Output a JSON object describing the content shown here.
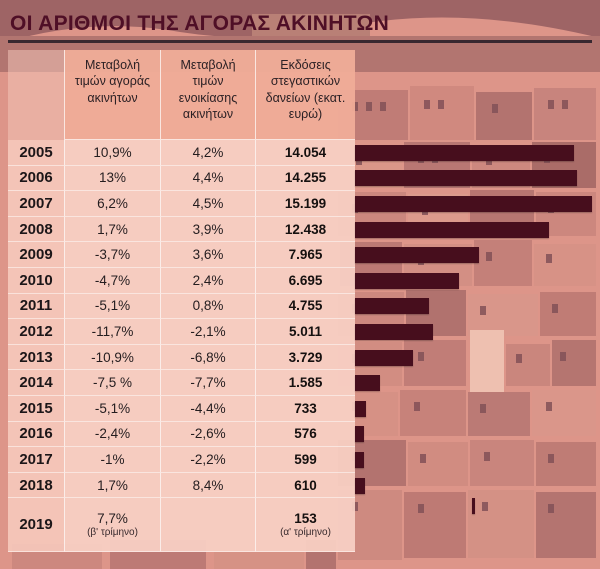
{
  "title": "ΟΙ ΑΡΙΘΜΟΙ ΤΗΣ ΑΓΟΡΑΣ ΑΚΙΝΗΤΩΝ",
  "colors": {
    "bar": "#470e1d",
    "title": "#4f0f26",
    "table_bg": "#f8cfc3",
    "header_bg": "#efac98",
    "photo_tint": "#db9488"
  },
  "table": {
    "headers": [
      "Μεταβολή τιμών αγοράς ακινήτων",
      "Μεταβολή τιμών ενοικίασης ακινήτων",
      "Εκδόσεις στεγαστικών δανείων (εκατ. ευρώ)"
    ],
    "rows": [
      {
        "year": "2005",
        "purchase": "10,9%",
        "rent": "4,2%",
        "loans": "14.054",
        "loans_value": 14054
      },
      {
        "year": "2006",
        "purchase": "13%",
        "rent": "4,4%",
        "loans": "14.255",
        "loans_value": 14255
      },
      {
        "year": "2007",
        "purchase": "6,2%",
        "rent": "4,5%",
        "loans": "15.199",
        "loans_value": 15199
      },
      {
        "year": "2008",
        "purchase": "1,7%",
        "rent": "3,9%",
        "loans": "12.438",
        "loans_value": 12438
      },
      {
        "year": "2009",
        "purchase": "-3,7%",
        "rent": "3,6%",
        "loans": "7.965",
        "loans_value": 7965
      },
      {
        "year": "2010",
        "purchase": "-4,7%",
        "rent": "2,4%",
        "loans": "6.695",
        "loans_value": 6695
      },
      {
        "year": "2011",
        "purchase": "-5,1%",
        "rent": "0,8%",
        "loans": "4.755",
        "loans_value": 4755
      },
      {
        "year": "2012",
        "purchase": "-11,7%",
        "rent": "-2,1%",
        "loans": "5.011",
        "loans_value": 5011
      },
      {
        "year": "2013",
        "purchase": "-10,9%",
        "rent": "-6,8%",
        "loans": "3.729",
        "loans_value": 3729
      },
      {
        "year": "2014",
        "purchase": "-7,5 %",
        "rent": "-7,7%",
        "loans": "1.585",
        "loans_value": 1585
      },
      {
        "year": "2015",
        "purchase": "-5,1%",
        "rent": "-4,4%",
        "loans": "733",
        "loans_value": 733
      },
      {
        "year": "2016",
        "purchase": "-2,4%",
        "rent": "-2,6%",
        "loans": "576",
        "loans_value": 576
      },
      {
        "year": "2017",
        "purchase": "-1%",
        "rent": "-2,2%",
        "loans": "599",
        "loans_value": 599
      },
      {
        "year": "2018",
        "purchase": "1,7%",
        "rent": "8,4%",
        "loans": "610",
        "loans_value": 610
      },
      {
        "year": "2019",
        "purchase": "7,7%",
        "purchase_note": "(β' τρίμηνο)",
        "rent": "",
        "loans": "153",
        "loans_note": "(α' τρίμηνο)",
        "loans_value": 153
      }
    ]
  },
  "chart_data": {
    "type": "bar",
    "orientation": "horizontal",
    "title": "ΟΙ ΑΡΙΘΜΟΙ ΤΗΣ ΑΓΟΡΑΣ ΑΚΙΝΗΤΩΝ",
    "categories": [
      "2005",
      "2006",
      "2007",
      "2008",
      "2009",
      "2010",
      "2011",
      "2012",
      "2013",
      "2014",
      "2015",
      "2016",
      "2017",
      "2018",
      "2019"
    ],
    "series": [
      {
        "name": "Μεταβολή τιμών αγοράς ακινήτων (%)",
        "values": [
          10.9,
          13,
          6.2,
          1.7,
          -3.7,
          -4.7,
          -5.1,
          -11.7,
          -10.9,
          -7.5,
          -5.1,
          -2.4,
          -1,
          1.7,
          7.7
        ]
      },
      {
        "name": "Μεταβολή τιμών ενοικίασης ακινήτων (%)",
        "values": [
          4.2,
          4.4,
          4.5,
          3.9,
          3.6,
          2.4,
          0.8,
          -2.1,
          -6.8,
          -7.7,
          -4.4,
          -2.6,
          -2.2,
          8.4,
          null
        ]
      },
      {
        "name": "Εκδόσεις στεγαστικών δανείων (εκατ. ευρώ)",
        "values": [
          14054,
          14255,
          15199,
          12438,
          7965,
          6695,
          4755,
          5011,
          3729,
          1585,
          733,
          576,
          599,
          610,
          153
        ]
      }
    ],
    "bars_shown_for_series": "Εκδόσεις στεγαστικών δανείων (εκατ. ευρώ)",
    "xlim": [
      0,
      15199
    ],
    "legend_position": "none",
    "grid": false,
    "annotations": [
      "2019 αγορά: β' τρίμηνο",
      "2019 δάνεια: α' τρίμηνο"
    ]
  }
}
